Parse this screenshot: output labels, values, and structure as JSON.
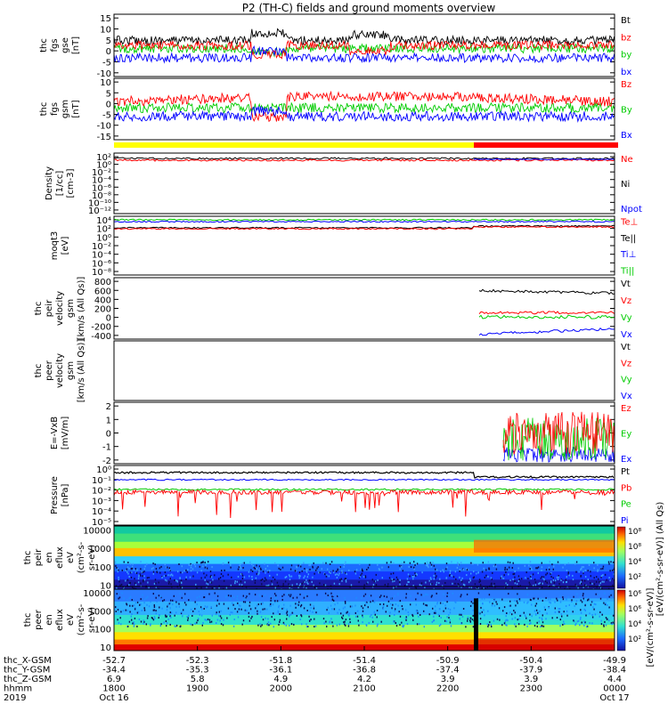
{
  "title": "P2 (TH-C) fields and ground moments overview",
  "colors": {
    "black": "#000000",
    "red": "#ff0000",
    "green": "#00cc00",
    "blue": "#0000ff",
    "yellow": "#ffff00",
    "bar_red": "#ff0000"
  },
  "chart_data": [
    {
      "type": "line",
      "id": "fgs-gse",
      "ylabel": [
        "thc",
        "fgs",
        "gse",
        "[nT]"
      ],
      "ticks": [
        "15",
        "10",
        "5",
        "0",
        "-5",
        "-10"
      ],
      "ylim": [
        -11,
        16
      ],
      "legend": [
        {
          "label": "Bt",
          "color": "black"
        },
        {
          "label": "bz",
          "color": "red"
        },
        {
          "label": "by",
          "color": "green"
        },
        {
          "label": "bx",
          "color": "blue"
        }
      ]
    },
    {
      "type": "line",
      "id": "fgs-gsm",
      "ylabel": [
        "thc",
        "fgs",
        "gsm",
        "[nT]"
      ],
      "ticks": [
        "10",
        "5",
        "0",
        "-5",
        "-10",
        "-15"
      ],
      "ylim": [
        -18,
        11
      ],
      "legend": [
        {
          "label": "Bz",
          "color": "red"
        },
        {
          "label": "By",
          "color": "green"
        },
        {
          "label": "Bx",
          "color": "blue"
        }
      ]
    },
    {
      "type": "line",
      "id": "density",
      "scale": "log",
      "ylabel": [
        "Density",
        "[1/cc]",
        "[cm-3]"
      ],
      "ticks": [
        "10²",
        "10⁰",
        "10⁻²",
        "10⁻⁴",
        "10⁻⁶",
        "10⁻⁸",
        "10⁻¹⁰",
        "10⁻¹²"
      ],
      "legend": [
        {
          "label": "Ne",
          "color": "red"
        },
        {
          "label": "Ni",
          "color": "black"
        },
        {
          "label": "Npot",
          "color": "blue"
        }
      ]
    },
    {
      "type": "line",
      "id": "temperature",
      "scale": "log",
      "ylabel": [
        "moqt3",
        "[eV]"
      ],
      "ticks": [
        "10⁴",
        "10²",
        "10⁰",
        "10⁻²",
        "10⁻⁴",
        "10⁻⁶",
        "10⁻⁸"
      ],
      "legend": [
        {
          "label": "Te⊥",
          "color": "red"
        },
        {
          "label": "Te||",
          "color": "black"
        },
        {
          "label": "Ti⊥",
          "color": "blue"
        },
        {
          "label": "Ti||",
          "color": "green"
        }
      ]
    },
    {
      "type": "line",
      "id": "peir-velocity",
      "ylabel": [
        "thc",
        "peir",
        "velocity",
        "gsm",
        "[km/s (All Qs)]"
      ],
      "ticks": [
        "800",
        "600",
        "400",
        "200",
        "0",
        "-200",
        "-400"
      ],
      "ylim": [
        -420,
        830
      ],
      "legend": [
        {
          "label": "Vt",
          "color": "black"
        },
        {
          "label": "Vz",
          "color": "red"
        },
        {
          "label": "Vy",
          "color": "green"
        },
        {
          "label": "Vx",
          "color": "blue"
        }
      ]
    },
    {
      "type": "line",
      "id": "peer-velocity",
      "ylabel": [
        "thc",
        "peer",
        "velocity",
        "gsm",
        "[km/s (All Qs)]"
      ],
      "ticks": [],
      "legend": [
        {
          "label": "Vt",
          "color": "black"
        },
        {
          "label": "Vz",
          "color": "red"
        },
        {
          "label": "Vy",
          "color": "green"
        },
        {
          "label": "Vx",
          "color": "blue"
        }
      ]
    },
    {
      "type": "line",
      "id": "efield",
      "ylabel": [
        "E=-VxB",
        "[mV/m]"
      ],
      "ticks": [
        "2",
        "1",
        "0",
        "-1",
        "-2"
      ],
      "ylim": [
        -2.2,
        2.8
      ],
      "legend": [
        {
          "label": "Ez",
          "color": "red"
        },
        {
          "label": "Ey",
          "color": "green"
        },
        {
          "label": "Ex",
          "color": "blue"
        }
      ]
    },
    {
      "type": "line",
      "id": "pressure",
      "scale": "log",
      "ylabel": [
        "Pressure",
        "[nPa]"
      ],
      "ticks": [
        "10⁰",
        "10⁻¹",
        "10⁻²",
        "10⁻³",
        "10⁻⁴",
        "10⁻⁵"
      ],
      "legend": [
        {
          "label": "Pt",
          "color": "black"
        },
        {
          "label": "Pb",
          "color": "red"
        },
        {
          "label": "Pe",
          "color": "green"
        },
        {
          "label": "Pi",
          "color": "blue"
        }
      ]
    },
    {
      "type": "heatmap",
      "id": "peir-en-eflux",
      "ylabel": [
        "thc",
        "peir",
        "en",
        "eflux",
        "eV",
        "(cm²-s-",
        "sr-eV)"
      ],
      "ticks": [
        "10000",
        "1000",
        "100",
        "10"
      ]
    },
    {
      "type": "heatmap",
      "id": "peer-en-eflux",
      "ylabel": [
        "thc",
        "peer",
        "en",
        "eflux",
        "eV",
        "(cm²-s-",
        "sr-eV)"
      ],
      "ticks": [
        "10000",
        "1000",
        "100",
        "10"
      ]
    }
  ],
  "colorbar": {
    "label": "[eV/(cm²-s-sr-eV)] (All Qs)",
    "label2": "[eV/(cm²-s-sr-eV)]",
    "ticks_top": [
      "10⁸",
      "10⁸",
      "10⁴",
      "10²"
    ],
    "ticks_bottom": [
      "10⁶",
      "10⁶",
      "10⁴",
      "10²"
    ]
  },
  "xaxis": {
    "row_labels": [
      "thc_X-GSM",
      "thc_Y-GSM",
      "thc_Z-GSM",
      "hhmm",
      "2019"
    ],
    "columns": [
      {
        "x": "-52.7",
        "y": "-34.4",
        "z": "6.9",
        "hhmm": "1800",
        "date": "Oct 16"
      },
      {
        "x": "-52.3",
        "y": "-35.3",
        "z": "5.8",
        "hhmm": "1900",
        "date": ""
      },
      {
        "x": "-51.8",
        "y": "-36.1",
        "z": "4.9",
        "hhmm": "2000",
        "date": ""
      },
      {
        "x": "-51.4",
        "y": "-36.8",
        "z": "4.2",
        "hhmm": "2100",
        "date": ""
      },
      {
        "x": "-50.9",
        "y": "-37.4",
        "z": "3.9",
        "hhmm": "2200",
        "date": ""
      },
      {
        "x": "-50.4",
        "y": "-37.9",
        "z": "3.9",
        "hhmm": "2300",
        "date": ""
      },
      {
        "x": "-49.9",
        "y": "-38.4",
        "z": "4.4",
        "hhmm": "0000",
        "date": "Oct 17"
      }
    ]
  }
}
